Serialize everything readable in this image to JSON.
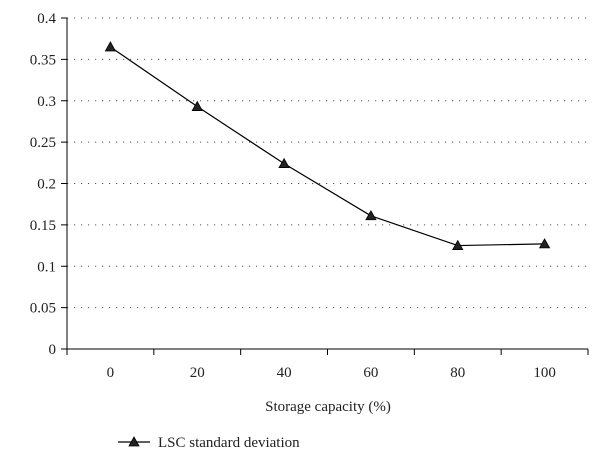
{
  "chart_data": {
    "type": "line",
    "title": "",
    "xlabel": "Storage capacity (%)",
    "ylabel": "",
    "x": [
      0,
      20,
      40,
      60,
      80,
      100
    ],
    "xlim": [
      -10,
      110
    ],
    "ylim": [
      0,
      0.4
    ],
    "x_ticks": [
      "0",
      "20",
      "40",
      "60",
      "80",
      "100"
    ],
    "y_ticks": [
      "0",
      "0.05",
      "0.1",
      "0.15",
      "0.2",
      "0.25",
      "0.3",
      "0.35",
      "0.4"
    ],
    "y_tick_values": [
      0,
      0.05,
      0.1,
      0.15,
      0.2,
      0.25,
      0.3,
      0.35,
      0.4
    ],
    "grid": "horizontal dotted",
    "legend_position": "bottom-left",
    "series": [
      {
        "name": "LSC standard deviation",
        "values": [
          0.365,
          0.293,
          0.224,
          0.161,
          0.125,
          0.127
        ],
        "marker": "triangle",
        "color": "#000000"
      }
    ]
  }
}
